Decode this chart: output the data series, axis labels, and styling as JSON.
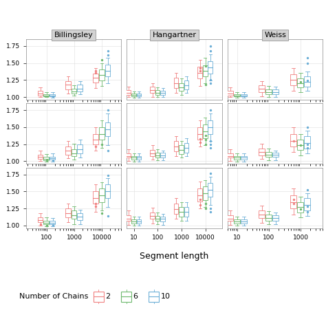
{
  "col_labels": [
    "Billingsley",
    "Hangartner",
    "Weiss"
  ],
  "xlabel": "Segment length",
  "legend_title": "Number of Chains",
  "colors": {
    "2": "#F08080",
    "6": "#6DB86D",
    "10": "#6BAED6"
  },
  "col_xticks": {
    "0": [
      100,
      1000,
      10000
    ],
    "1": [
      10,
      100,
      1000,
      10000
    ],
    "2": [
      10,
      100,
      1000
    ]
  },
  "col_xticklabels": {
    "0": [
      "100",
      "1000",
      "10000"
    ],
    "1": [
      "10",
      "100",
      "1000",
      "10000"
    ],
    "2": [
      "10",
      "100",
      "1000"
    ]
  },
  "col_xlims": {
    "0": [
      18,
      50000
    ],
    "1": [
      5,
      50000
    ],
    "2": [
      5,
      5000
    ]
  },
  "panels": {
    "r0c0": {
      "xvals": [
        100,
        1000,
        10000
      ],
      "data_2": {
        "med": [
          1.05,
          1.18,
          1.28
        ],
        "q1": [
          1.02,
          1.11,
          1.21
        ],
        "q3": [
          1.09,
          1.23,
          1.34
        ],
        "wlo": [
          1.0,
          1.05,
          1.13
        ],
        "whi": [
          1.14,
          1.3,
          1.42
        ],
        "out_lo": [],
        "out_hi": [
          1.35,
          1.38
        ]
      },
      "data_6": {
        "med": [
          1.02,
          1.08,
          1.32
        ],
        "q1": [
          1.01,
          1.05,
          1.24
        ],
        "q3": [
          1.04,
          1.12,
          1.4
        ],
        "wlo": [
          1.0,
          1.02,
          1.16
        ],
        "whi": [
          1.07,
          1.17,
          1.5
        ],
        "out_lo": [],
        "out_hi": [
          1.55
        ]
      },
      "data_10": {
        "med": [
          1.02,
          1.12,
          1.38
        ],
        "q1": [
          1.01,
          1.08,
          1.3
        ],
        "q3": [
          1.04,
          1.18,
          1.48
        ],
        "wlo": [
          0.99,
          1.04,
          1.2
        ],
        "whi": [
          1.07,
          1.23,
          1.58
        ],
        "out_lo": [
          1.01
        ],
        "out_hi": [
          1.62,
          1.68
        ]
      }
    },
    "r1c0": {
      "xvals": [
        100,
        1000,
        10000
      ],
      "data_2": {
        "med": [
          1.06,
          1.16,
          1.32
        ],
        "q1": [
          1.03,
          1.1,
          1.25
        ],
        "q3": [
          1.1,
          1.22,
          1.4
        ],
        "wlo": [
          1.0,
          1.04,
          1.16
        ],
        "whi": [
          1.16,
          1.3,
          1.5
        ],
        "out_lo": [],
        "out_hi": [
          1.22
        ]
      },
      "data_6": {
        "med": [
          1.03,
          1.12,
          1.4
        ],
        "q1": [
          1.01,
          1.08,
          1.32
        ],
        "q3": [
          1.06,
          1.18,
          1.5
        ],
        "wlo": [
          0.99,
          1.02,
          1.2
        ],
        "whi": [
          1.11,
          1.26,
          1.6
        ],
        "out_lo": [
          1.01
        ],
        "out_hi": [
          1.25
        ]
      },
      "data_10": {
        "med": [
          1.04,
          1.18,
          1.47
        ],
        "q1": [
          1.02,
          1.12,
          1.37
        ],
        "q3": [
          1.07,
          1.25,
          1.57
        ],
        "wlo": [
          0.99,
          1.05,
          1.24
        ],
        "whi": [
          1.12,
          1.32,
          1.7
        ],
        "out_lo": [
          1.01
        ],
        "out_hi": [
          1.16,
          1.75
        ]
      }
    },
    "r2c0": {
      "xvals": [
        100,
        1000,
        10000
      ],
      "data_2": {
        "med": [
          1.08,
          1.18,
          1.4
        ],
        "q1": [
          1.05,
          1.12,
          1.32
        ],
        "q3": [
          1.12,
          1.25,
          1.5
        ],
        "wlo": [
          1.0,
          1.05,
          1.2
        ],
        "whi": [
          1.18,
          1.32,
          1.6
        ],
        "out_lo": [
          1.02
        ],
        "out_hi": [
          1.28,
          1.32
        ]
      },
      "data_6": {
        "med": [
          1.04,
          1.15,
          1.44
        ],
        "q1": [
          1.02,
          1.1,
          1.34
        ],
        "q3": [
          1.07,
          1.22,
          1.54
        ],
        "wlo": [
          0.99,
          1.02,
          1.22
        ],
        "whi": [
          1.12,
          1.28,
          1.63
        ],
        "out_lo": [
          1.0,
          1.0
        ],
        "out_hi": [
          1.18
        ]
      },
      "data_10": {
        "med": [
          1.04,
          1.13,
          1.5
        ],
        "q1": [
          1.02,
          1.08,
          1.4
        ],
        "q3": [
          1.07,
          1.18,
          1.6
        ],
        "wlo": [
          0.99,
          1.02,
          1.27
        ],
        "whi": [
          1.11,
          1.23,
          1.7
        ],
        "out_lo": [
          1.01,
          1.01
        ],
        "out_hi": [
          1.14,
          1.74
        ]
      }
    },
    "r0c1": {
      "xvals": [
        10,
        100,
        1000,
        10000
      ],
      "data_2": {
        "med": [
          1.06,
          1.1,
          1.2,
          1.35
        ],
        "q1": [
          1.03,
          1.06,
          1.13,
          1.27
        ],
        "q3": [
          1.1,
          1.15,
          1.28,
          1.44
        ],
        "wlo": [
          1.0,
          1.0,
          1.06,
          1.16
        ],
        "whi": [
          1.15,
          1.2,
          1.35,
          1.55
        ],
        "out_lo": [],
        "out_hi": [
          1.38,
          1.42
        ]
      },
      "data_6": {
        "med": [
          1.03,
          1.06,
          1.14,
          1.38
        ],
        "q1": [
          1.01,
          1.03,
          1.09,
          1.3
        ],
        "q3": [
          1.05,
          1.1,
          1.2,
          1.47
        ],
        "wlo": [
          0.99,
          1.0,
          1.03,
          1.2
        ],
        "whi": [
          1.08,
          1.14,
          1.27,
          1.58
        ],
        "out_lo": [],
        "out_hi": [
          1.18,
          1.45
        ]
      },
      "data_10": {
        "med": [
          1.03,
          1.06,
          1.17,
          1.43
        ],
        "q1": [
          1.01,
          1.03,
          1.11,
          1.34
        ],
        "q3": [
          1.05,
          1.09,
          1.24,
          1.53
        ],
        "wlo": [
          0.99,
          1.0,
          1.06,
          1.24
        ],
        "whi": [
          1.08,
          1.13,
          1.3,
          1.63
        ],
        "out_lo": [],
        "out_hi": [
          1.2,
          1.25,
          1.68,
          1.75
        ]
      }
    },
    "r1c1": {
      "xvals": [
        10,
        100,
        1000,
        10000
      ],
      "data_2": {
        "med": [
          1.08,
          1.12,
          1.22,
          1.4
        ],
        "q1": [
          1.05,
          1.08,
          1.15,
          1.32
        ],
        "q3": [
          1.12,
          1.17,
          1.3,
          1.5
        ],
        "wlo": [
          1.0,
          1.02,
          1.08,
          1.22
        ],
        "whi": [
          1.18,
          1.24,
          1.37,
          1.6
        ],
        "out_lo": [],
        "out_hi": [
          1.28,
          1.33
        ]
      },
      "data_6": {
        "med": [
          1.05,
          1.09,
          1.17,
          1.44
        ],
        "q1": [
          1.02,
          1.05,
          1.11,
          1.34
        ],
        "q3": [
          1.08,
          1.13,
          1.24,
          1.54
        ],
        "wlo": [
          0.99,
          1.01,
          1.05,
          1.24
        ],
        "whi": [
          1.12,
          1.18,
          1.3,
          1.64
        ],
        "out_lo": [],
        "out_hi": [
          1.25,
          1.32,
          1.38
        ]
      },
      "data_10": {
        "med": [
          1.05,
          1.09,
          1.2,
          1.5
        ],
        "q1": [
          1.02,
          1.05,
          1.13,
          1.4
        ],
        "q3": [
          1.08,
          1.13,
          1.27,
          1.6
        ],
        "wlo": [
          0.99,
          1.01,
          1.08,
          1.3
        ],
        "whi": [
          1.12,
          1.16,
          1.34,
          1.7
        ],
        "out_lo": [],
        "out_hi": [
          1.2,
          1.25,
          1.3,
          1.75
        ]
      }
    },
    "r2c1": {
      "xvals": [
        10,
        100,
        1000,
        10000
      ],
      "data_2": {
        "med": [
          1.1,
          1.14,
          1.24,
          1.44
        ],
        "q1": [
          1.07,
          1.1,
          1.17,
          1.35
        ],
        "q3": [
          1.15,
          1.19,
          1.32,
          1.54
        ],
        "wlo": [
          1.01,
          1.03,
          1.1,
          1.25
        ],
        "whi": [
          1.22,
          1.26,
          1.4,
          1.64
        ],
        "out_lo": [],
        "out_hi": [
          1.3,
          1.38
        ]
      },
      "data_6": {
        "med": [
          1.06,
          1.1,
          1.2,
          1.47
        ],
        "q1": [
          1.03,
          1.07,
          1.13,
          1.37
        ],
        "q3": [
          1.09,
          1.14,
          1.27,
          1.57
        ],
        "wlo": [
          1.0,
          1.02,
          1.07,
          1.27
        ],
        "whi": [
          1.13,
          1.19,
          1.34,
          1.67
        ],
        "out_lo": [],
        "out_hi": [
          1.25,
          1.32
        ]
      },
      "data_10": {
        "med": [
          1.06,
          1.1,
          1.2,
          1.52
        ],
        "q1": [
          1.03,
          1.06,
          1.13,
          1.42
        ],
        "q3": [
          1.09,
          1.13,
          1.27,
          1.62
        ],
        "wlo": [
          1.0,
          1.01,
          1.07,
          1.3
        ],
        "whi": [
          1.13,
          1.17,
          1.34,
          1.72
        ],
        "out_lo": [],
        "out_hi": [
          1.2,
          1.25,
          1.77
        ]
      }
    },
    "r0c2": {
      "xvals": [
        10,
        100,
        1000
      ],
      "data_2": {
        "med": [
          1.05,
          1.12,
          1.25
        ],
        "q1": [
          1.02,
          1.07,
          1.17
        ],
        "q3": [
          1.09,
          1.17,
          1.33
        ],
        "wlo": [
          1.0,
          1.01,
          1.09
        ],
        "whi": [
          1.14,
          1.23,
          1.42
        ],
        "out_lo": [],
        "out_hi": []
      },
      "data_6": {
        "med": [
          1.02,
          1.07,
          1.2
        ],
        "q1": [
          1.01,
          1.04,
          1.14
        ],
        "q3": [
          1.04,
          1.11,
          1.27
        ],
        "wlo": [
          0.99,
          1.0,
          1.07
        ],
        "whi": [
          1.07,
          1.16,
          1.35
        ],
        "out_lo": [],
        "out_hi": [
          1.22
        ]
      },
      "data_10": {
        "med": [
          1.02,
          1.07,
          1.22
        ],
        "q1": [
          1.01,
          1.04,
          1.15
        ],
        "q3": [
          1.04,
          1.11,
          1.3
        ],
        "wlo": [
          0.99,
          1.0,
          1.09
        ],
        "whi": [
          1.07,
          1.15,
          1.37
        ],
        "out_lo": [],
        "out_hi": [
          1.24,
          1.5,
          1.58
        ]
      }
    },
    "r1c2": {
      "xvals": [
        10,
        100,
        1000
      ],
      "data_2": {
        "med": [
          1.08,
          1.14,
          1.3
        ],
        "q1": [
          1.05,
          1.09,
          1.22
        ],
        "q3": [
          1.12,
          1.19,
          1.4
        ],
        "wlo": [
          1.0,
          1.03,
          1.14
        ],
        "whi": [
          1.18,
          1.26,
          1.5
        ],
        "out_lo": [],
        "out_hi": [
          1.3
        ]
      },
      "data_6": {
        "med": [
          1.05,
          1.1,
          1.24
        ],
        "q1": [
          1.02,
          1.06,
          1.17
        ],
        "q3": [
          1.08,
          1.14,
          1.32
        ],
        "wlo": [
          0.99,
          1.01,
          1.09
        ],
        "whi": [
          1.12,
          1.19,
          1.4
        ],
        "out_lo": [],
        "out_hi": [
          1.24
        ]
      },
      "data_10": {
        "med": [
          1.05,
          1.1,
          1.27
        ],
        "q1": [
          1.02,
          1.06,
          1.19
        ],
        "q3": [
          1.08,
          1.13,
          1.37
        ],
        "wlo": [
          0.99,
          1.01,
          1.12
        ],
        "whi": [
          1.12,
          1.16,
          1.45
        ],
        "out_lo": [],
        "out_hi": [
          1.2,
          1.25,
          1.5
        ]
      }
    },
    "r2c2": {
      "xvals": [
        10,
        100,
        1000
      ],
      "data_2": {
        "med": [
          1.1,
          1.16,
          1.34
        ],
        "q1": [
          1.07,
          1.11,
          1.25
        ],
        "q3": [
          1.15,
          1.22,
          1.44
        ],
        "wlo": [
          1.01,
          1.04,
          1.16
        ],
        "whi": [
          1.22,
          1.29,
          1.54
        ],
        "out_lo": [],
        "out_hi": [
          1.32,
          1.38
        ]
      },
      "data_6": {
        "med": [
          1.06,
          1.11,
          1.27
        ],
        "q1": [
          1.03,
          1.07,
          1.19
        ],
        "q3": [
          1.09,
          1.16,
          1.34
        ],
        "wlo": [
          1.0,
          1.02,
          1.12
        ],
        "whi": [
          1.13,
          1.21,
          1.42
        ],
        "out_lo": [],
        "out_hi": [
          1.24
        ]
      },
      "data_10": {
        "med": [
          1.06,
          1.11,
          1.3
        ],
        "q1": [
          1.03,
          1.07,
          1.22
        ],
        "q3": [
          1.09,
          1.15,
          1.4
        ],
        "wlo": [
          1.0,
          1.02,
          1.14
        ],
        "whi": [
          1.13,
          1.19,
          1.47
        ],
        "out_lo": [],
        "out_hi": [
          1.2,
          1.28,
          1.52
        ]
      }
    }
  }
}
